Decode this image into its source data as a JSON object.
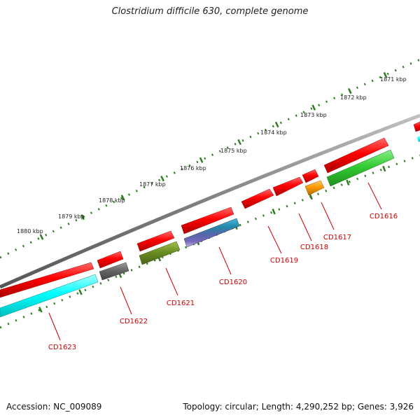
{
  "title": "Clostridium difficile 630, complete genome",
  "footer": {
    "accession": "Accession: NC_009089",
    "summary": "Topology: circular; Length: 4,290,252 bp; Genes: 3,926"
  },
  "colors": {
    "backbone": "#808080",
    "gene_forward": "#ff0000",
    "tick": "#2e7d20",
    "label": "#cc0000"
  },
  "kbp_labels": [
    "1871 kbp",
    "1872 kbp",
    "1873 kbp",
    "1874 kbp",
    "1875 kbp",
    "1876 kbp",
    "1877 kbp",
    "1878 kbp",
    "1879 kbp",
    "1880 kbp"
  ],
  "genes": [
    {
      "label": "CD1616",
      "color": "#33cc33"
    },
    {
      "label": "CD1617",
      "color": "#ff9900"
    },
    {
      "label": "CD1618",
      "color": "#ff0000"
    },
    {
      "label": "CD1619",
      "color": "#ff0000"
    },
    {
      "label": "CD1620",
      "color": "#33aacc"
    },
    {
      "label": "CD1621",
      "color": "#6b8e23"
    },
    {
      "label": "CD1622",
      "color": "#666666"
    },
    {
      "label": "CD1623",
      "color": "#00ffff"
    }
  ]
}
